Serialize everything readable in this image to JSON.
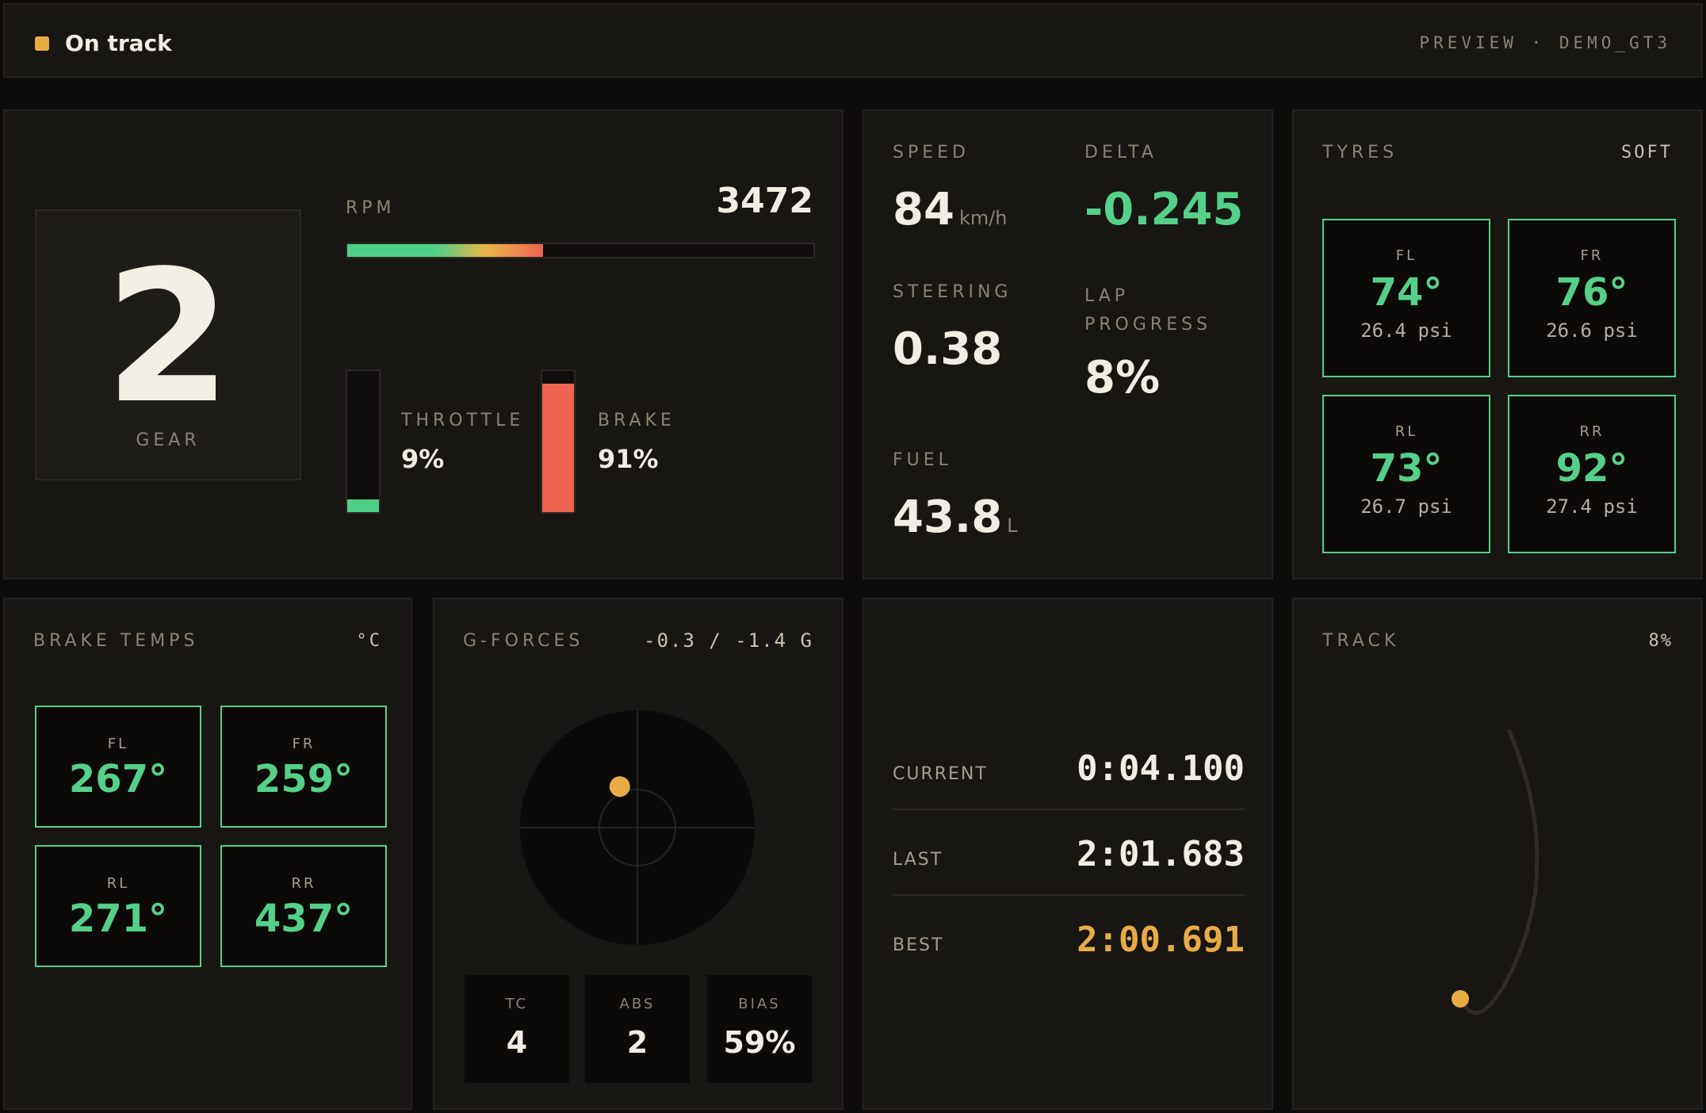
{
  "header": {
    "status": "On track",
    "session": "PREVIEW · DEMO_GT3",
    "status_color": "#e9ac45"
  },
  "drive": {
    "gear": "2",
    "gear_label": "GEAR",
    "rpm_label": "RPM",
    "rpm": "3472",
    "rpm_fraction": 0.42,
    "throttle_label": "THROTTLE",
    "throttle": "9%",
    "throttle_fraction": 0.09,
    "brake_label": "BRAKE",
    "brake": "91%",
    "brake_fraction": 0.91
  },
  "stats": {
    "speed_label": "SPEED",
    "speed": "84",
    "speed_unit": "km/h",
    "delta_label": "DELTA",
    "delta": "-0.245",
    "steering_label": "STEERING",
    "steering": "0.38",
    "lap_progress_label": "LAP PROGRESS",
    "lap_progress": "8%",
    "fuel_label": "FUEL",
    "fuel": "43.8",
    "fuel_unit": "L"
  },
  "tyres": {
    "title": "TYRES",
    "compound": "SOFT",
    "items": [
      {
        "pos": "FL",
        "temp": "74°",
        "pressure": "26.4 psi"
      },
      {
        "pos": "FR",
        "temp": "76°",
        "pressure": "26.6 psi"
      },
      {
        "pos": "RL",
        "temp": "73°",
        "pressure": "26.7 psi"
      },
      {
        "pos": "RR",
        "temp": "92°",
        "pressure": "27.4 psi"
      }
    ]
  },
  "brakes": {
    "title": "BRAKE TEMPS",
    "unit": "°C",
    "items": [
      {
        "pos": "FL",
        "temp": "267°"
      },
      {
        "pos": "FR",
        "temp": "259°"
      },
      {
        "pos": "RL",
        "temp": "271°"
      },
      {
        "pos": "RR",
        "temp": "437°"
      }
    ]
  },
  "gforces": {
    "title": "G-FORCES",
    "value": "-0.3 / -1.4 G",
    "lat_g": -0.3,
    "lon_g": -1.4,
    "assists": [
      {
        "label": "TC",
        "value": "4"
      },
      {
        "label": "ABS",
        "value": "2"
      },
      {
        "label": "BIAS",
        "value": "59%"
      }
    ]
  },
  "laps": {
    "current_label": "CURRENT",
    "current": "0:04.100",
    "last_label": "LAST",
    "last": "2:01.683",
    "best_label": "BEST",
    "best": "2:00.691"
  },
  "track": {
    "title": "TRACK",
    "progress": "8%",
    "progress_fraction": 0.08,
    "marker_color": "#e9ac45"
  }
}
